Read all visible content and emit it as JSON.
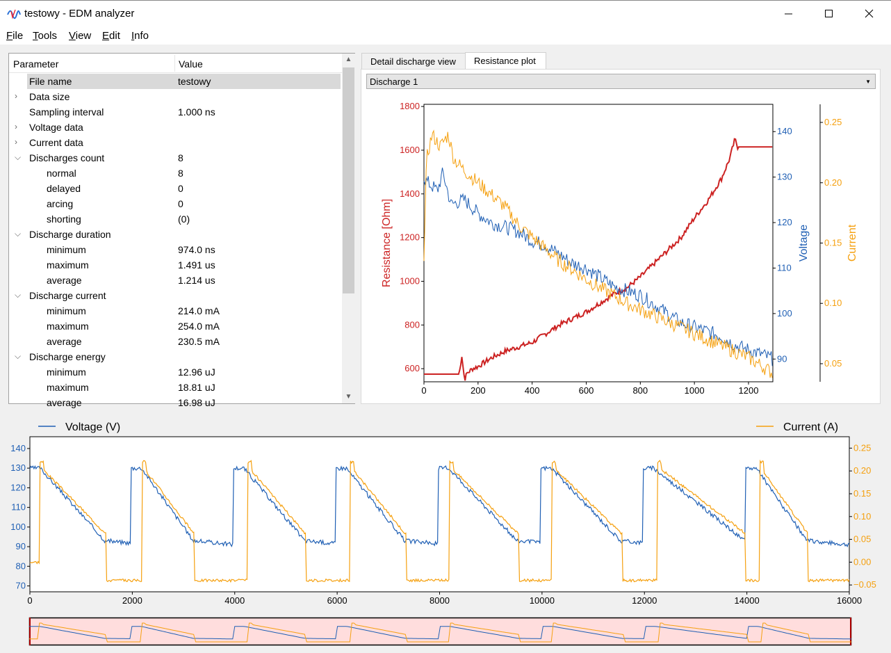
{
  "window": {
    "title": "testowy - EDM analyzer",
    "controls": {
      "minimize": "—",
      "maximize": "☐",
      "close": "✕"
    }
  },
  "menu": [
    {
      "label": "File",
      "mnemonic": "F"
    },
    {
      "label": "Tools",
      "mnemonic": "T"
    },
    {
      "label": "View",
      "mnemonic": "V"
    },
    {
      "label": "Edit",
      "mnemonic": "E"
    },
    {
      "label": "Info",
      "mnemonic": "I"
    }
  ],
  "tree": {
    "headers": {
      "parameter": "Parameter",
      "value": "Value"
    },
    "rows": [
      {
        "key": "File name",
        "value": "testowy",
        "level": 0,
        "arrow": "",
        "selected": true
      },
      {
        "key": "Data size",
        "value": "",
        "level": 0,
        "arrow": "collapsed"
      },
      {
        "key": "Sampling interval",
        "value": "1.000 ns",
        "level": 0,
        "arrow": ""
      },
      {
        "key": "Voltage data",
        "value": "",
        "level": 0,
        "arrow": "collapsed"
      },
      {
        "key": "Current data",
        "value": "",
        "level": 0,
        "arrow": "collapsed"
      },
      {
        "key": "Discharges count",
        "value": "8",
        "level": 0,
        "arrow": "expanded"
      },
      {
        "key": "normal",
        "value": "8",
        "level": 1,
        "arrow": ""
      },
      {
        "key": "delayed",
        "value": "0",
        "level": 1,
        "arrow": ""
      },
      {
        "key": "arcing",
        "value": "0",
        "level": 1,
        "arrow": ""
      },
      {
        "key": "shorting",
        "value": "(0)",
        "level": 1,
        "arrow": ""
      },
      {
        "key": "Discharge duration",
        "value": "",
        "level": 0,
        "arrow": "expanded"
      },
      {
        "key": "minimum",
        "value": "974.0 ns",
        "level": 1,
        "arrow": ""
      },
      {
        "key": "maximum",
        "value": "1.491 us",
        "level": 1,
        "arrow": ""
      },
      {
        "key": "average",
        "value": "1.214 us",
        "level": 1,
        "arrow": ""
      },
      {
        "key": "Discharge current",
        "value": "",
        "level": 0,
        "arrow": "expanded"
      },
      {
        "key": "minimum",
        "value": "214.0 mA",
        "level": 1,
        "arrow": ""
      },
      {
        "key": "maximum",
        "value": "254.0 mA",
        "level": 1,
        "arrow": ""
      },
      {
        "key": "average",
        "value": "230.5 mA",
        "level": 1,
        "arrow": ""
      },
      {
        "key": "Discharge energy",
        "value": "",
        "level": 0,
        "arrow": "expanded"
      },
      {
        "key": "minimum",
        "value": "12.96 uJ",
        "level": 1,
        "arrow": ""
      },
      {
        "key": "maximum",
        "value": "18.81 uJ",
        "level": 1,
        "arrow": ""
      },
      {
        "key": "average",
        "value": "16.98 uJ",
        "level": 1,
        "arrow": ""
      }
    ]
  },
  "tabs": [
    {
      "label": "Detail discharge view",
      "active": false
    },
    {
      "label": "Resistance plot",
      "active": true
    }
  ],
  "discharge_select": {
    "value": "Discharge 1"
  },
  "colors": {
    "voltage": "#1f5fb4",
    "current": "#f5a00f",
    "resistance": "#cc2222",
    "window": "#ffdddd"
  },
  "chart_data": [
    {
      "type": "line",
      "name": "resistance-plot",
      "x_ticks": [
        0,
        200,
        400,
        600,
        800,
        1000,
        1200
      ],
      "xlim": [
        0,
        1290
      ],
      "axes": [
        {
          "label": "Resistance [Ohm]",
          "side": "left",
          "ylim": [
            540,
            1810
          ],
          "ticks": [
            600,
            800,
            1000,
            1200,
            1400,
            1600,
            1800
          ],
          "color": "#cc2222"
        },
        {
          "label": "Voltage",
          "side": "right",
          "ylim": [
            85,
            146
          ],
          "ticks": [
            90,
            100,
            110,
            120,
            130,
            140
          ],
          "color": "#1f5fb4"
        },
        {
          "label": "Current",
          "side": "right-outer",
          "ylim": [
            0.035,
            0.265
          ],
          "ticks": [
            0.05,
            0.1,
            0.15,
            0.2,
            0.25
          ],
          "tick_labels": [
            "0.05",
            "0.10",
            "0.15",
            "0.20",
            "0.25"
          ],
          "color": "#f5a00f"
        }
      ],
      "series": [
        {
          "axis": 0,
          "x": [
            0,
            130,
            140,
            150,
            160,
            180,
            200,
            250,
            300,
            350,
            400,
            450,
            500,
            550,
            600,
            650,
            700,
            750,
            800,
            850,
            900,
            950,
            1000,
            1050,
            1100,
            1130,
            1150,
            1160,
            1290
          ],
          "y": [
            575,
            575,
            660,
            550,
            580,
            600,
            610,
            650,
            680,
            700,
            720,
            760,
            800,
            830,
            860,
            900,
            940,
            970,
            1020,
            1080,
            1140,
            1200,
            1290,
            1370,
            1470,
            1560,
            1650,
            1615,
            1615
          ]
        },
        {
          "axis": 1,
          "x": [
            0,
            10,
            50,
            70,
            100,
            150,
            200,
            250,
            300,
            350,
            400,
            450,
            500,
            550,
            600,
            650,
            700,
            750,
            800,
            850,
            900,
            950,
            1000,
            1050,
            1100,
            1150,
            1200,
            1250,
            1290
          ],
          "y": [
            130,
            129,
            127,
            131,
            124,
            125,
            122,
            120,
            119,
            118,
            116,
            115,
            113,
            111,
            110,
            108,
            106,
            105,
            104,
            102,
            100,
            98,
            97,
            96,
            95,
            93,
            92,
            91,
            90
          ]
        },
        {
          "axis": 2,
          "x": [
            0,
            10,
            30,
            60,
            90,
            110,
            150,
            200,
            250,
            300,
            350,
            400,
            450,
            500,
            550,
            600,
            650,
            700,
            750,
            800,
            850,
            900,
            950,
            1000,
            1050,
            1100,
            1150,
            1200,
            1250,
            1290
          ],
          "y": [
            0.14,
            0.22,
            0.24,
            0.23,
            0.24,
            0.22,
            0.21,
            0.2,
            0.19,
            0.18,
            0.165,
            0.155,
            0.145,
            0.135,
            0.128,
            0.12,
            0.113,
            0.107,
            0.1,
            0.095,
            0.09,
            0.085,
            0.08,
            0.075,
            0.07,
            0.065,
            0.06,
            0.055,
            0.048,
            0.042
          ]
        }
      ]
    },
    {
      "type": "line",
      "name": "waveform",
      "legend": [
        {
          "label": "Voltage (V)",
          "position": "left"
        },
        {
          "label": "Current (A)",
          "position": "right"
        }
      ],
      "xlim": [
        0,
        16000
      ],
      "x_ticks": [
        0,
        2000,
        4000,
        6000,
        8000,
        10000,
        12000,
        14000,
        16000
      ],
      "y_left": {
        "ylim": [
          67,
          146
        ],
        "ticks": [
          70,
          80,
          90,
          100,
          110,
          120,
          130,
          140
        ]
      },
      "y_right": {
        "ylim": [
          -0.065,
          0.275
        ],
        "ticks": [
          -0.05,
          0.0,
          0.05,
          0.1,
          0.15,
          0.2,
          0.25
        ],
        "tick_labels": [
          "−0.05",
          "0.00",
          "0.05",
          "0.10",
          "0.15",
          "0.20",
          "0.25"
        ]
      },
      "pulses": [
        {
          "v_start": 0,
          "i_start": 200,
          "fall": 1500
        },
        {
          "v_start": 1980,
          "i_start": 2200,
          "fall": 3220
        },
        {
          "v_start": 3980,
          "i_start": 4250,
          "fall": 5400
        },
        {
          "v_start": 5980,
          "i_start": 6250,
          "fall": 7350
        },
        {
          "v_start": 7980,
          "i_start": 8200,
          "fall": 9550
        },
        {
          "v_start": 9980,
          "i_start": 10200,
          "fall": 11570
        },
        {
          "v_start": 11980,
          "i_start": 12250,
          "fall": 14000
        },
        {
          "v_start": 13980,
          "i_start": 14250,
          "fall": 15200
        }
      ],
      "voltage_high": 130,
      "voltage_low": 90,
      "current_high": 0.21,
      "current_low": -0.04
    }
  ]
}
